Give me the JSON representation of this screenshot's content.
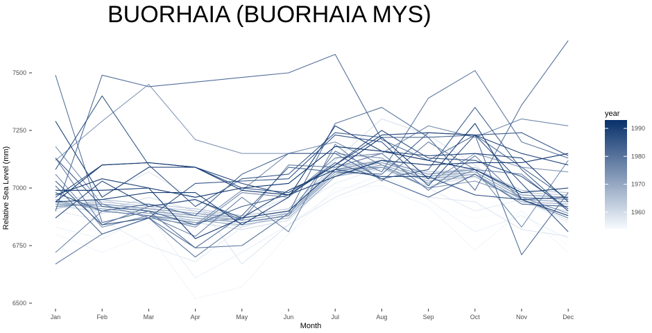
{
  "chart_data": {
    "type": "line",
    "title": "BUORHAIA (BUORHAIA MYS)",
    "xlabel": "Month",
    "ylabel": "Relative Sea Level (mm)",
    "categories": [
      "Jan",
      "Feb",
      "Mar",
      "Apr",
      "May",
      "Jun",
      "Jul",
      "Aug",
      "Sep",
      "Oct",
      "Nov",
      "Dec"
    ],
    "ylim": [
      6480,
      7650
    ],
    "yticks": [
      6500,
      6750,
      7000,
      7250,
      7500
    ],
    "ytick_labels": [
      "6500",
      "6750",
      "7000",
      "7250",
      "7500"
    ],
    "grid": false,
    "legend": {
      "title": "year",
      "position": "right",
      "range": [
        1954,
        1993
      ],
      "ticks": [
        1960,
        1970,
        1980,
        1990
      ],
      "tick_labels": [
        "1960",
        "1970",
        "1980",
        "1990"
      ],
      "color_low": "#f7fbff",
      "color_high": "#08306b"
    },
    "series": [
      {
        "year": 1954,
        "values": [
          6870,
          6810,
          6860,
          6700,
          6740,
          6800,
          6950,
          7000,
          6920,
          6870,
          6900,
          6750
        ]
      },
      {
        "year": 1955,
        "values": [
          6800,
          6720,
          6800,
          6520,
          6570,
          6800,
          7000,
          7010,
          6920,
          6730,
          6900,
          6720
        ]
      },
      {
        "year": 1956,
        "values": [
          6830,
          6780,
          6880,
          6610,
          6720,
          6840,
          6980,
          7060,
          6950,
          6810,
          6880,
          6780
        ]
      },
      {
        "year": 1957,
        "values": [
          6900,
          6860,
          6750,
          6680,
          6830,
          6900,
          7020,
          7090,
          7000,
          6900,
          6950,
          6850
        ]
      },
      {
        "year": 1958,
        "values": [
          6950,
          6970,
          7070,
          6950,
          6670,
          6840,
          6960,
          7040,
          6960,
          6940,
          6820,
          6790
        ]
      },
      {
        "year": 1959,
        "values": [
          6920,
          6900,
          6960,
          6900,
          6880,
          6960,
          7120,
          7300,
          7230,
          7100,
          6950,
          6860
        ]
      },
      {
        "year": 1960,
        "values": [
          6930,
          6890,
          6920,
          6850,
          6820,
          6860,
          7050,
          7080,
          7010,
          7050,
          6940,
          6900
        ]
      },
      {
        "year": 1961,
        "values": [
          6910,
          6950,
          6900,
          6870,
          6830,
          6890,
          7060,
          7090,
          7030,
          7060,
          6950,
          6940
        ]
      },
      {
        "year": 1962,
        "values": [
          6940,
          6920,
          6900,
          6880,
          6850,
          6880,
          7070,
          7100,
          7040,
          7070,
          6960,
          6950
        ]
      },
      {
        "year": 1963,
        "values": [
          6930,
          6930,
          6910,
          6890,
          6860,
          6890,
          7080,
          7110,
          7050,
          7080,
          6970,
          6960
        ]
      },
      {
        "year": 1964,
        "values": [
          6920,
          6940,
          6920,
          6900,
          6870,
          6900,
          7090,
          7120,
          7060,
          7090,
          6980,
          6970
        ]
      },
      {
        "year": 1965,
        "values": [
          6910,
          6950,
          6930,
          6910,
          6880,
          6910,
          7100,
          7110,
          7070,
          7080,
          6990,
          6980
        ]
      },
      {
        "year": 1966,
        "values": [
          6940,
          6910,
          6890,
          6870,
          6850,
          6880,
          7060,
          7100,
          7040,
          7060,
          6950,
          6940
        ]
      },
      {
        "year": 1967,
        "values": [
          6930,
          6920,
          6900,
          6880,
          6860,
          6890,
          7070,
          7110,
          7050,
          7070,
          6960,
          6950
        ]
      },
      {
        "year": 1968,
        "values": [
          6920,
          6930,
          6910,
          6890,
          6870,
          6900,
          7080,
          7120,
          7060,
          7080,
          6970,
          6960
        ]
      },
      {
        "year": 1969,
        "values": [
          6950,
          6900,
          6880,
          6860,
          6840,
          6870,
          7050,
          7090,
          7030,
          7050,
          6940,
          6930
        ]
      },
      {
        "year": 1970,
        "values": [
          6940,
          6910,
          6890,
          6870,
          6850,
          6880,
          7060,
          7100,
          7040,
          7060,
          6950,
          6940
        ]
      },
      {
        "year": 1971,
        "values": [
          6930,
          6920,
          6900,
          6880,
          6860,
          6890,
          7070,
          7110,
          7050,
          7070,
          6960,
          6950
        ]
      },
      {
        "year": 1972,
        "values": [
          6920,
          6930,
          6910,
          6890,
          6870,
          6900,
          7080,
          7120,
          7060,
          7080,
          6970,
          6960
        ]
      },
      {
        "year": 1973,
        "values": [
          7120,
          7290,
          7450,
          7210,
          7150,
          7150,
          7150,
          7130,
          7020,
          7150,
          7090,
          7070
        ]
      },
      {
        "year": 1974,
        "values": [
          6980,
          6900,
          6880,
          6850,
          6870,
          6900,
          7080,
          7090,
          7000,
          7030,
          6960,
          6890
        ]
      },
      {
        "year": 1975,
        "values": [
          7180,
          6930,
          6870,
          6840,
          6990,
          7150,
          7200,
          7100,
          7000,
          7080,
          6830,
          7120
        ]
      },
      {
        "year": 1976,
        "values": [
          7060,
          6830,
          6880,
          6830,
          6980,
          6960,
          7130,
          7150,
          7270,
          7220,
          7300,
          7270
        ]
      },
      {
        "year": 1977,
        "values": [
          6720,
          6900,
          6880,
          6790,
          6960,
          6810,
          7190,
          7030,
          7200,
          7080,
          7060,
          6900
        ]
      },
      {
        "year": 1978,
        "values": [
          7130,
          6840,
          6920,
          6950,
          6860,
          7100,
          7090,
          7150,
          6990,
          7140,
          6950,
          6870
        ]
      },
      {
        "year": 1979,
        "values": [
          6670,
          6800,
          6870,
          6700,
          6850,
          6880,
          7160,
          7070,
          7390,
          7510,
          7200,
          7130
        ]
      },
      {
        "year": 1980,
        "values": [
          7490,
          6850,
          6900,
          6740,
          6750,
          6890,
          7280,
          7350,
          7220,
          6990,
          7360,
          7640
        ]
      },
      {
        "year": 1981,
        "values": [
          6900,
          7490,
          7440,
          7460,
          7480,
          7500,
          7580,
          7210,
          7120,
          7230,
          6710,
          6980
        ]
      },
      {
        "year": 1982,
        "values": [
          7010,
          6800,
          6870,
          6740,
          6880,
          7090,
          7070,
          7060,
          7240,
          7230,
          7090,
          6950
        ]
      },
      {
        "year": 1983,
        "values": [
          6980,
          6900,
          6930,
          6880,
          7060,
          7150,
          7150,
          7040,
          6960,
          7060,
          6930,
          6920
        ]
      },
      {
        "year": 1984,
        "values": [
          7130,
          6920,
          6900,
          6840,
          6920,
          6970,
          7110,
          7040,
          7080,
          7350,
          7080,
          6900
        ]
      },
      {
        "year": 1985,
        "values": [
          7080,
          7400,
          7100,
          6920,
          7040,
          7060,
          7240,
          7220,
          7220,
          7230,
          7240,
          7140
        ]
      },
      {
        "year": 1986,
        "values": [
          7030,
          6840,
          6870,
          7020,
          7030,
          7040,
          7230,
          7200,
          7010,
          7230,
          7020,
          6810
        ]
      },
      {
        "year": 1987,
        "values": [
          6960,
          7100,
          7110,
          7090,
          7000,
          6980,
          7100,
          7250,
          7130,
          7120,
          7050,
          6910
        ]
      },
      {
        "year": 1988,
        "values": [
          6870,
          7030,
          6920,
          6950,
          6870,
          6900,
          7080,
          7050,
          7050,
          6970,
          6950,
          6960
        ]
      },
      {
        "year": 1989,
        "values": [
          7290,
          6960,
          7090,
          7090,
          7020,
          6970,
          7100,
          7230,
          7240,
          7230,
          7150,
          7100
        ]
      },
      {
        "year": 1990,
        "values": [
          6940,
          6950,
          6980,
          6980,
          6840,
          6960,
          7270,
          7160,
          7140,
          7150,
          7130,
          6940
        ]
      },
      {
        "year": 1991,
        "values": [
          6970,
          7040,
          7000,
          6780,
          6870,
          6990,
          7080,
          7220,
          7040,
          7280,
          6950,
          6880
        ]
      },
      {
        "year": 1992,
        "values": [
          6940,
          7100,
          7110,
          7090,
          6990,
          6970,
          7050,
          7120,
          7100,
          7110,
          7110,
          7150
        ]
      },
      {
        "year": 1993,
        "values": [
          6990,
          6990,
          7000,
          6960,
          7000,
          7020,
          7180,
          7160,
          7120,
          7080,
          6980,
          7000
        ]
      }
    ]
  }
}
